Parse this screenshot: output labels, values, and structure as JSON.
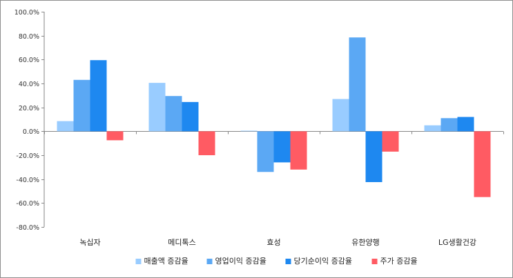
{
  "chart_data": {
    "type": "bar",
    "title": "",
    "xlabel": "",
    "ylabel": "",
    "ylim": [
      -80,
      100
    ],
    "ytick_step": 20,
    "ytick_labels": [
      "100.0%",
      "80.0%",
      "60.0%",
      "40.0%",
      "20.0%",
      "0.0%",
      "-20.0%",
      "-40.0%",
      "-60.0%",
      "-80.0%"
    ],
    "categories": [
      "녹십자",
      "메디톡스",
      "효성",
      "유한양행",
      "LG생활건강"
    ],
    "series": [
      {
        "name": "매출액 증감율",
        "color": "#99ccff",
        "values": [
          8.5,
          40.5,
          0.5,
          27.0,
          5.0
        ]
      },
      {
        "name": "영업이익 증감율",
        "color": "#5ba8f4",
        "values": [
          43.0,
          29.5,
          -34.0,
          78.5,
          11.0
        ]
      },
      {
        "name": "당기순이익 증감율",
        "color": "#1e88f0",
        "values": [
          59.5,
          24.5,
          -26.0,
          -42.5,
          12.0
        ]
      },
      {
        "name": "주가 증감율",
        "color": "#ff5b63",
        "values": [
          -7.5,
          -20.0,
          -32.0,
          -17.0,
          -55.0
        ]
      }
    ],
    "legend_position": "bottom",
    "grid": false
  }
}
